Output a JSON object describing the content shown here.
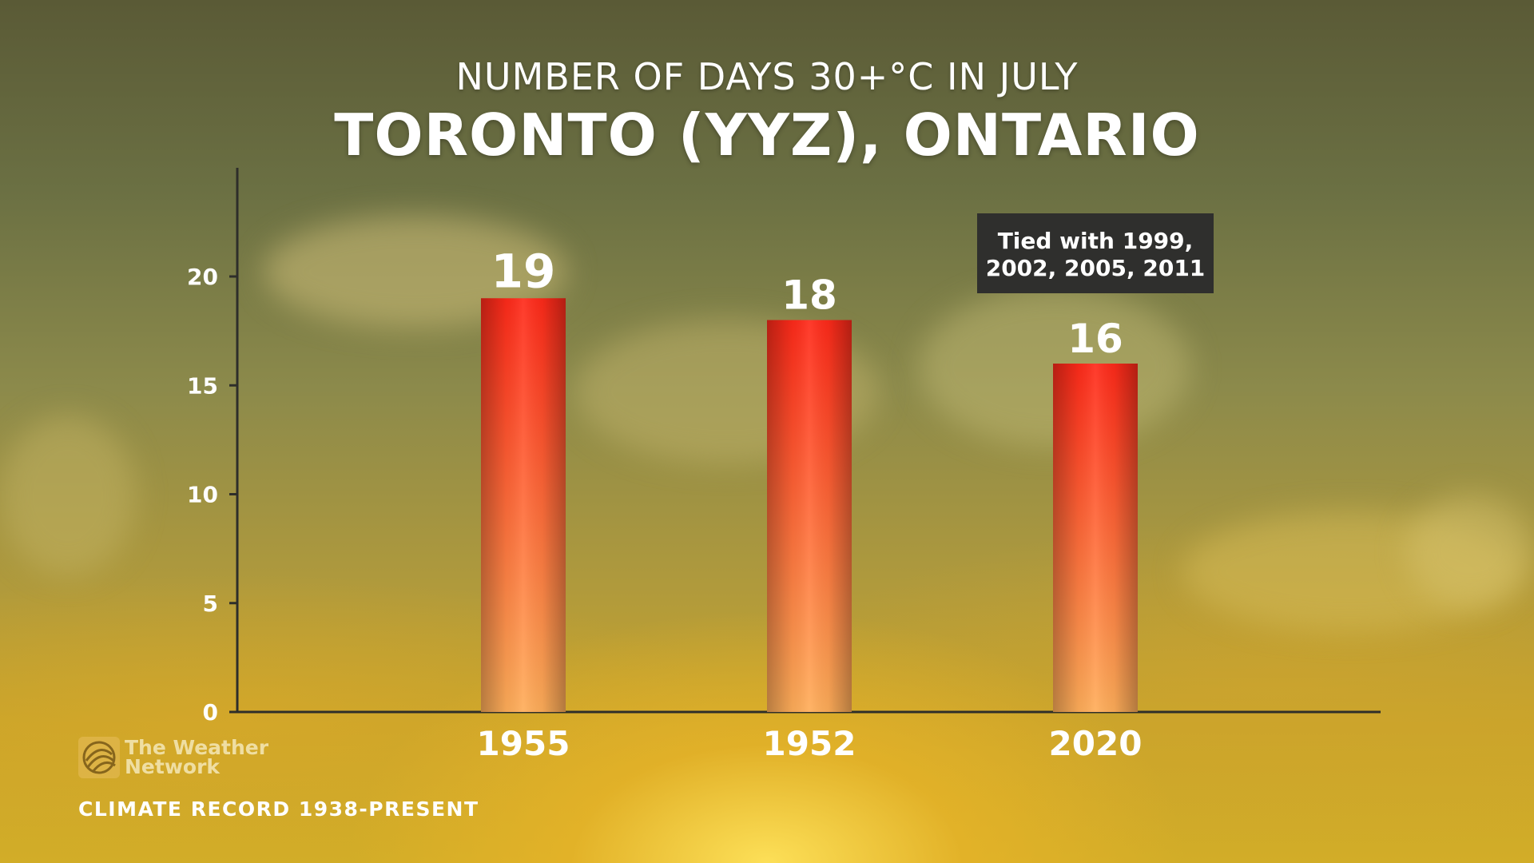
{
  "header": {
    "subtitle": "NUMBER OF DAYS 30+°C IN JULY",
    "title": "TORONTO (YYZ), ONTARIO"
  },
  "branding": {
    "logo_line1": "The Weather",
    "logo_line2": "Network",
    "logo_icon": "globe-icon"
  },
  "footnote": "CLIMATE RECORD 1938-PRESENT",
  "colors": {
    "bar_top": "#ff2a1a",
    "bar_bottom": "#ffae5a",
    "annotation_bg": "#2f2f2d",
    "text": "#ffffff",
    "axis": "#2e2e2a"
  },
  "chart_data": {
    "type": "bar",
    "title": "TORONTO (YYZ), ONTARIO",
    "subtitle": "NUMBER OF DAYS 30+°C IN JULY",
    "categories": [
      "1955",
      "1952",
      "2020"
    ],
    "values": [
      19,
      18,
      16
    ],
    "data_labels": [
      "19",
      "18",
      "16"
    ],
    "xlabel": "",
    "ylabel": "",
    "ylim": [
      0,
      25
    ],
    "yticks": [
      0,
      5,
      10,
      15,
      20
    ],
    "grid": false,
    "annotations": [
      {
        "category": "2020",
        "lines": [
          "Tied with 1999,",
          "2002, 2005, 2011"
        ]
      }
    ]
  }
}
